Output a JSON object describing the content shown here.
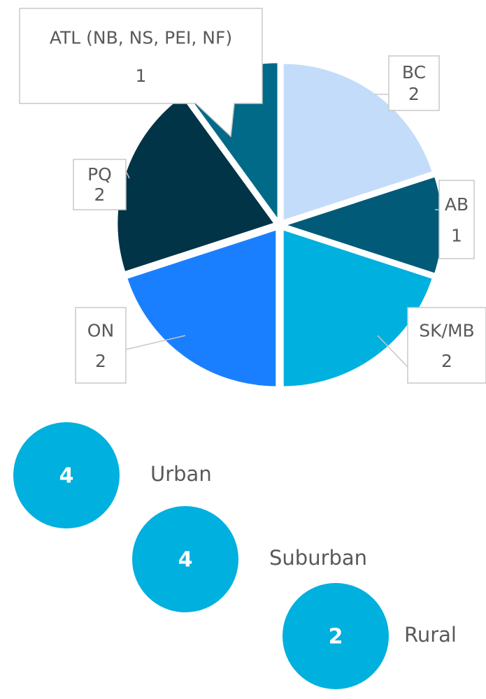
{
  "chart_data": {
    "type": "pie",
    "categories": [
      "BC",
      "AB",
      "SK/MB",
      "ON",
      "PQ",
      "ATL (NB, NS, PEI, NF)"
    ],
    "values": [
      2,
      1,
      2,
      2,
      2,
      1
    ],
    "colors": [
      "#c3dcf9",
      "#005a78",
      "#00b0de",
      "#1a7fff",
      "#003446",
      "#006a88"
    ]
  },
  "groups": [
    {
      "value": "4",
      "label": "Urban"
    },
    {
      "value": "4",
      "label": "Suburban"
    },
    {
      "value": "2",
      "label": "Rural"
    }
  ]
}
